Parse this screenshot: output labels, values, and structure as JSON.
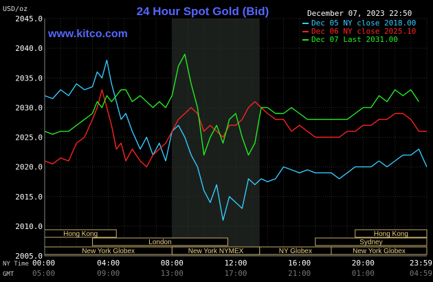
{
  "chart_data": {
    "type": "line",
    "title": "24 Hour Spot Gold (Bid)",
    "source": "www.kitco.com",
    "datetime": "December 07, 2023 22:50",
    "ylabel": "USD/oz",
    "ylim": [
      2005,
      2045
    ],
    "yticks": [
      "2045.0",
      "2040.0",
      "2035.0",
      "2030.0",
      "2025.0",
      "2020.0",
      "2015.0",
      "2010.0",
      "2005.0"
    ],
    "ytick_values": [
      2045,
      2040,
      2035,
      2030,
      2025,
      2020,
      2015,
      2010,
      2005
    ],
    "xlim": [
      0,
      24
    ],
    "xticks_ny": [
      "00:00",
      "04:00",
      "08:00",
      "12:00",
      "16:00",
      "20:00",
      "23:59"
    ],
    "xticks_gmt": [
      "05:00",
      "09:00",
      "13:00",
      "17:00",
      "21:00",
      "01:00",
      "04:59"
    ],
    "xtick_hours": [
      0,
      4,
      8,
      12,
      16,
      20,
      24
    ],
    "x_row_labels": [
      "NY Time",
      "GMT"
    ],
    "grid": true,
    "highlight_band_hours": [
      8,
      13.5
    ],
    "sessions": [
      {
        "label": "Hong Kong",
        "start": 0,
        "end": 4.5,
        "row": 0
      },
      {
        "label": "Hong Kong",
        "start": 19.5,
        "end": 24,
        "row": 0
      },
      {
        "label": "London",
        "start": 3,
        "end": 11.5,
        "row": 1
      },
      {
        "label": "Sydney",
        "start": 17,
        "end": 24,
        "row": 1
      },
      {
        "label": "New York Globex",
        "start": 0,
        "end": 8,
        "row": 2
      },
      {
        "label": "New York NYMEX",
        "start": 8,
        "end": 13.5,
        "row": 2
      },
      {
        "label": "NY Globex",
        "start": 13.5,
        "end": 18,
        "row": 2
      },
      {
        "label": "New York Globex",
        "start": 18,
        "end": 24,
        "row": 2
      }
    ],
    "legend_position": "top-right",
    "series": [
      {
        "name": "Dec 05 NY close 2018.00",
        "color": "#33ccff",
        "x": [
          0,
          0.5,
          1,
          1.5,
          2,
          2.5,
          3,
          3.3,
          3.6,
          3.9,
          4.2,
          4.5,
          4.8,
          5.1,
          5.5,
          6,
          6.4,
          6.8,
          7.2,
          7.6,
          8,
          8.4,
          8.8,
          9.2,
          9.6,
          10,
          10.4,
          10.8,
          11.2,
          11.6,
          12,
          12.4,
          12.8,
          13.2,
          13.6,
          14,
          14.5,
          15,
          15.5,
          16,
          16.5,
          17,
          17.5,
          18,
          18.5,
          19,
          19.5,
          20,
          20.5,
          21,
          21.5,
          22,
          22.5,
          23,
          23.5,
          24
        ],
        "values": [
          2032,
          2031.5,
          2033,
          2032,
          2034,
          2033,
          2033.5,
          2036,
          2035,
          2038,
          2034,
          2031,
          2028,
          2029,
          2026,
          2023,
          2025,
          2022,
          2024,
          2021,
          2026,
          2027,
          2025,
          2022,
          2020,
          2016,
          2014,
          2017,
          2011,
          2015,
          2014,
          2013,
          2018,
          2017,
          2018,
          2017.5,
          2018,
          2020,
          2019.5,
          2019,
          2019.5,
          2019,
          2019,
          2019,
          2018,
          2019,
          2020,
          2020,
          2020,
          2021,
          2020,
          2021,
          2022,
          2022,
          2023,
          2020
        ]
      },
      {
        "name": "Dec 06 NY close 2025.10",
        "color": "#ff2222",
        "x": [
          0,
          0.5,
          1,
          1.5,
          2,
          2.5,
          3,
          3.3,
          3.6,
          3.9,
          4.2,
          4.5,
          4.8,
          5.1,
          5.5,
          6,
          6.4,
          6.8,
          7.2,
          7.6,
          8,
          8.4,
          8.8,
          9.2,
          9.6,
          10,
          10.4,
          10.8,
          11.2,
          11.6,
          12,
          12.4,
          12.8,
          13.2,
          13.6,
          14,
          14.5,
          15,
          15.5,
          16,
          16.5,
          17,
          17.5,
          18,
          18.5,
          19,
          19.5,
          20,
          20.5,
          21,
          21.5,
          22,
          22.5,
          23,
          23.5,
          24
        ],
        "values": [
          2021,
          2020.5,
          2021.5,
          2021,
          2024,
          2025,
          2028,
          2030,
          2033,
          2030,
          2027,
          2023,
          2024,
          2021,
          2023,
          2021,
          2020,
          2022,
          2023,
          2024,
          2026,
          2028,
          2029,
          2030,
          2029,
          2026,
          2027,
          2026,
          2025,
          2027,
          2027,
          2028,
          2030,
          2031,
          2030,
          2029,
          2028,
          2028,
          2026,
          2027,
          2026,
          2025,
          2025,
          2025,
          2025,
          2026,
          2026,
          2027,
          2027,
          2028,
          2028,
          2029,
          2029,
          2028,
          2026,
          2026
        ]
      },
      {
        "name": "Dec 07 Last 2031.00",
        "color": "#22ee22",
        "x": [
          0,
          0.5,
          1,
          1.5,
          2,
          2.5,
          3,
          3.3,
          3.6,
          3.9,
          4.2,
          4.5,
          4.8,
          5.1,
          5.5,
          6,
          6.4,
          6.8,
          7.2,
          7.6,
          8,
          8.4,
          8.8,
          9.2,
          9.6,
          10,
          10.4,
          10.8,
          11.2,
          11.6,
          12,
          12.4,
          12.8,
          13.2,
          13.6,
          14,
          14.5,
          15,
          15.5,
          16,
          16.5,
          17,
          17.5,
          18,
          18.5,
          19,
          19.5,
          20,
          20.5,
          21,
          21.5,
          22,
          22.5,
          23,
          23.5
        ],
        "values": [
          2026,
          2025.5,
          2026,
          2026,
          2027,
          2028,
          2029,
          2031,
          2030,
          2032,
          2031,
          2032,
          2033,
          2033,
          2031,
          2032,
          2031,
          2030,
          2031,
          2030,
          2032,
          2037,
          2039,
          2034,
          2030,
          2022,
          2025,
          2027,
          2024,
          2028,
          2029,
          2025,
          2022,
          2024,
          2030,
          2030,
          2029,
          2029,
          2030,
          2029,
          2028,
          2028,
          2028,
          2028,
          2028,
          2028,
          2029,
          2030,
          2030,
          2032,
          2031,
          2033,
          2032,
          2033,
          2031
        ]
      }
    ]
  }
}
